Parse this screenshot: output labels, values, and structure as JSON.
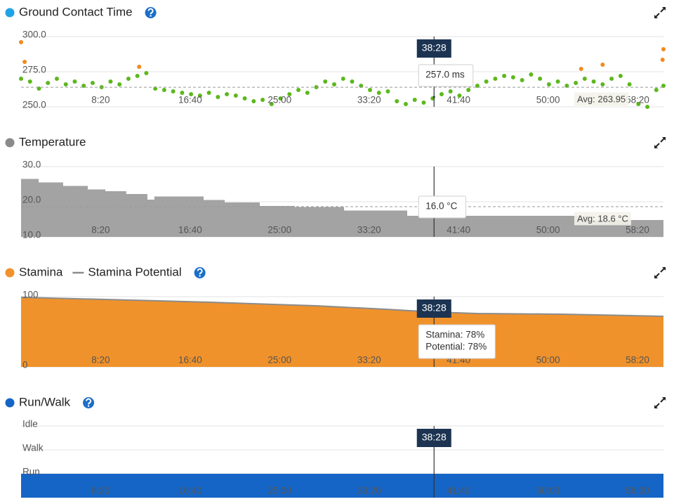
{
  "chart_data": [
    {
      "type": "scatter",
      "title": "Ground Contact Time",
      "marker_color": "#1fa3e6",
      "help": true,
      "xlim": [
        0,
        3590
      ],
      "xticks": [
        {
          "value": 500,
          "label": "8:20"
        },
        {
          "value": 1000,
          "label": "16:40"
        },
        {
          "value": 1500,
          "label": "25:00"
        },
        {
          "value": 2000,
          "label": "33:20"
        },
        {
          "value": 2500,
          "label": "41:40"
        },
        {
          "value": 3000,
          "label": "50:00"
        },
        {
          "value": 3500,
          "label": "58:20"
        }
      ],
      "ylim": [
        250,
        300
      ],
      "yticks": [
        {
          "value": 250,
          "label": "250.0"
        },
        {
          "value": 275,
          "label": "275.0"
        },
        {
          "value": 300,
          "label": "300.0"
        }
      ],
      "grid": true,
      "series": [
        {
          "type": "scatter",
          "color": "#5cb81c",
          "x": [
            0,
            50,
            100,
            150,
            200,
            250,
            300,
            350,
            400,
            450,
            500,
            550,
            600,
            650,
            700,
            750,
            800,
            850,
            900,
            950,
            1000,
            1050,
            1100,
            1150,
            1200,
            1250,
            1300,
            1350,
            1400,
            1450,
            1500,
            1550,
            1600,
            1650,
            1700,
            1750,
            1800,
            1850,
            1900,
            1950,
            2000,
            2050,
            2100,
            2150,
            2200,
            2250,
            2300,
            2350,
            2400,
            2450,
            2500,
            2550,
            2600,
            2650,
            2700,
            2750,
            2800,
            2850,
            2900,
            2950,
            3000,
            3050,
            3100,
            3150,
            3200,
            3250,
            3300,
            3350,
            3400,
            3450,
            3500,
            3550,
            3590
          ],
          "values": [
            270,
            268,
            263,
            267,
            270,
            266,
            268,
            265,
            267,
            264,
            268,
            266,
            270,
            272,
            274,
            263,
            262,
            261,
            260,
            259,
            258,
            260,
            257,
            259,
            258,
            256,
            254,
            255,
            252,
            256,
            259,
            262,
            260,
            264,
            268,
            266,
            270,
            268,
            265,
            262,
            260,
            261,
            254,
            252,
            255,
            253,
            256,
            259,
            261,
            258,
            262,
            265,
            268,
            270,
            272,
            271,
            269,
            273,
            270,
            266,
            268,
            265,
            267,
            270,
            268,
            266,
            270,
            272,
            266,
            252,
            250,
            262,
            265
          ]
        },
        {
          "type": "scatter",
          "color": "#f28a1c",
          "x": [
            0,
            20,
            660,
            3130,
            3250,
            3590,
            3585
          ],
          "values": [
            296,
            282,
            278.5,
            277,
            280,
            291,
            283.5
          ]
        }
      ],
      "average": {
        "value": 263.95,
        "label": "Avg: 263.95"
      },
      "cursor": {
        "x": 2308,
        "x_label": "38:28",
        "values": [
          257
        ],
        "value_labels": [
          "257.0 ms"
        ]
      }
    },
    {
      "type": "area",
      "title": "Temperature",
      "marker_color": "#8a8a8a",
      "xlim": [
        0,
        3590
      ],
      "xticks": [
        {
          "value": 500,
          "label": "8:20"
        },
        {
          "value": 1000,
          "label": "16:40"
        },
        {
          "value": 1500,
          "label": "25:00"
        },
        {
          "value": 2000,
          "label": "33:20"
        },
        {
          "value": 2500,
          "label": "41:40"
        },
        {
          "value": 3000,
          "label": "50:00"
        },
        {
          "value": 3500,
          "label": "58:20"
        }
      ],
      "ylim": [
        10,
        30
      ],
      "yticks": [
        {
          "value": 10,
          "label": "10.0"
        },
        {
          "value": 20,
          "label": "20.0"
        },
        {
          "value": 30,
          "label": "30.0"
        }
      ],
      "grid": true,
      "series": [
        {
          "type": "step-area",
          "color": "#a3a3a3",
          "x": [
            0,
            98,
            235,
            373,
            471,
            588,
            706,
            745,
            1020,
            1138,
            1334,
            1530,
            1805,
            2158,
            3178
          ],
          "values": [
            26.5,
            25.5,
            24.5,
            23.5,
            23,
            22.2,
            20.6,
            21.5,
            20.5,
            19.8,
            18.8,
            18.5,
            17.5,
            16,
            14.8
          ]
        }
      ],
      "average": {
        "value": 18.6,
        "label": "Avg: 18.6 °C"
      },
      "cursor": {
        "x": 2308,
        "values": [
          16
        ],
        "value_labels": [
          "16.0 °C"
        ]
      }
    },
    {
      "type": "area",
      "help": true,
      "xlim": [
        0,
        3590
      ],
      "xticks": [
        {
          "value": 500,
          "label": "8:20"
        },
        {
          "value": 1000,
          "label": "16:40"
        },
        {
          "value": 1500,
          "label": "25:00"
        },
        {
          "value": 2000,
          "label": "33:20"
        },
        {
          "value": 2500,
          "label": "41:40"
        },
        {
          "value": 3000,
          "label": "50:00"
        },
        {
          "value": 3500,
          "label": "58:20"
        }
      ],
      "ylim": [
        0,
        100
      ],
      "yticks": [
        0,
        100
      ],
      "grid": true,
      "series": [
        {
          "type": "area",
          "name": "Stamina",
          "color": "#f0922b",
          "x": [
            0,
            471,
            1059,
            1648,
            2040,
            2308,
            2550,
            3021,
            3413,
            3590
          ],
          "values": [
            99,
            96,
            92,
            87,
            82,
            78,
            76,
            75,
            73,
            72
          ]
        },
        {
          "type": "line",
          "name": "Stamina Potential",
          "color": "#8c8c8c",
          "x": [
            0,
            471,
            1059,
            1648,
            2040,
            2308,
            2550,
            3021,
            3413,
            3590
          ],
          "values": [
            99,
            96,
            92,
            87,
            82,
            78,
            76,
            75,
            73,
            72
          ]
        }
      ],
      "cursor": {
        "x": 2308,
        "x_label": "38:28",
        "values": [
          78,
          78
        ],
        "value_labels": [
          "Stamina: 78%",
          "Potential: 78%"
        ]
      }
    },
    {
      "type": "area",
      "title": "Run/Walk",
      "marker_color": "#1565c6",
      "help": true,
      "xlim": [
        0,
        3590
      ],
      "xticks": [
        {
          "value": 500,
          "label": "8:20"
        },
        {
          "value": 1000,
          "label": "16:40"
        },
        {
          "value": 1500,
          "label": "25:00"
        },
        {
          "value": 2000,
          "label": "33:20"
        },
        {
          "value": 2500,
          "label": "41:40"
        },
        {
          "value": 3000,
          "label": "50:00"
        },
        {
          "value": 3500,
          "label": "58:20"
        }
      ],
      "ylim": [
        -1,
        2
      ],
      "yticks": [
        {
          "value": 0,
          "label": "Run"
        },
        {
          "value": 1,
          "label": "Walk"
        },
        {
          "value": 2,
          "label": "Idle"
        }
      ],
      "grid": true,
      "series": [
        {
          "type": "step-area",
          "color": "#1565c6",
          "x": [
            0
          ],
          "values": [
            0
          ]
        }
      ],
      "cursor": {
        "x": 2308,
        "x_label": "38:28"
      }
    }
  ]
}
